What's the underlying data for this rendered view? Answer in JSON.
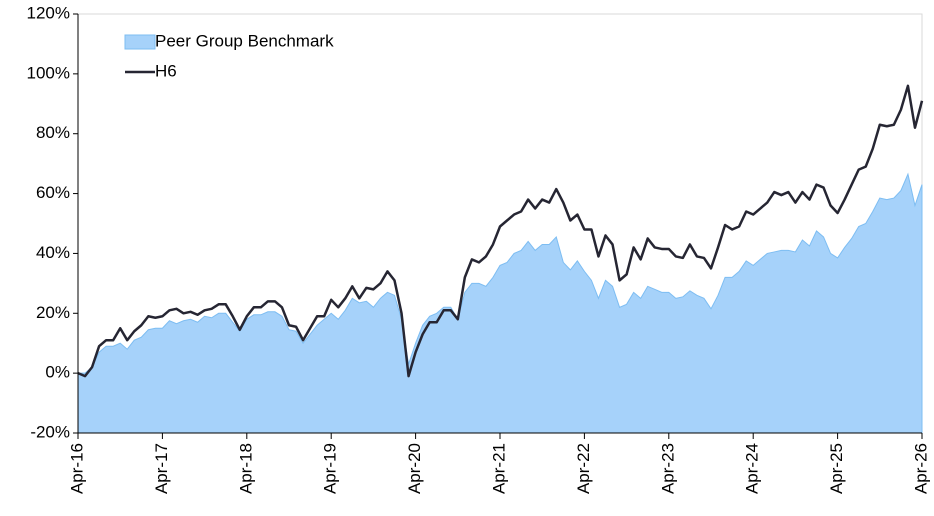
{
  "chart_data": {
    "type": "line-area",
    "categories": [
      "Apr-16",
      null,
      null,
      null,
      null,
      null,
      null,
      null,
      null,
      null,
      null,
      null,
      "Apr-17",
      null,
      null,
      null,
      null,
      null,
      null,
      null,
      null,
      null,
      null,
      null,
      "Apr-18",
      null,
      null,
      null,
      null,
      null,
      null,
      null,
      null,
      null,
      null,
      null,
      "Apr-19",
      null,
      null,
      null,
      null,
      null,
      null,
      null,
      null,
      null,
      null,
      null,
      "Apr-20",
      null,
      null,
      null,
      null,
      null,
      null,
      null,
      null,
      null,
      null,
      null,
      "Apr-21",
      null,
      null,
      null,
      null,
      null,
      null,
      null,
      null,
      null,
      null,
      null,
      "Apr-22",
      null,
      null,
      null,
      null,
      null,
      null,
      null,
      null,
      null,
      null,
      null,
      "Apr-23",
      null,
      null,
      null,
      null,
      null,
      null,
      null,
      null,
      null,
      null,
      null,
      "Apr-24",
      null,
      null,
      null,
      null,
      null,
      null,
      null,
      null,
      null,
      null,
      null,
      "Apr-25",
      null,
      null,
      null,
      null,
      null,
      null,
      null,
      null,
      null,
      null,
      null,
      "Apr-26"
    ],
    "series": [
      {
        "name": "Peer Group Benchmark",
        "style": "area",
        "color": "#a6d2fa",
        "values": [
          0,
          0,
          2,
          7,
          9,
          9,
          10,
          8,
          11,
          12,
          14.5,
          15,
          15,
          17.5,
          16.5,
          17.5,
          18,
          17,
          19,
          18.5,
          20,
          20,
          17,
          14,
          18,
          19.5,
          19.5,
          20.5,
          20.5,
          19,
          14.5,
          14,
          10,
          13,
          16,
          18,
          20,
          18,
          21,
          25,
          23.5,
          24,
          22,
          25,
          27,
          26,
          18,
          3,
          10,
          16,
          19,
          20,
          22,
          22,
          18,
          27,
          30,
          30,
          29,
          32,
          36,
          37,
          40,
          41,
          44,
          41,
          43,
          43,
          45.5,
          37,
          34.5,
          37.5,
          34,
          31,
          25,
          31,
          29,
          22,
          23,
          27,
          25,
          29,
          28,
          27,
          27,
          25,
          25.5,
          27.5,
          26,
          25,
          21.5,
          26,
          32,
          32,
          34,
          37.5,
          36,
          38,
          40,
          40.5,
          41,
          41,
          40.5,
          44.5,
          42.5,
          47.5,
          45.5,
          40,
          38.5,
          42,
          45,
          49,
          50,
          54,
          58.5,
          58,
          58.5,
          61,
          66.5,
          56,
          63
        ]
      },
      {
        "name": "H6",
        "style": "line",
        "color": "#262633",
        "values": [
          0,
          -1,
          2,
          9,
          11,
          11,
          15,
          11,
          14,
          16,
          19,
          18.5,
          19,
          21,
          21.5,
          20,
          20.5,
          19.5,
          21,
          21.5,
          23,
          23,
          19,
          14.5,
          19,
          22,
          22,
          24,
          24,
          22,
          16,
          15.5,
          11,
          15,
          19,
          19,
          24.5,
          22,
          25,
          29,
          25,
          28.5,
          28,
          30,
          34,
          31,
          20,
          -1,
          7,
          13,
          17,
          17,
          21,
          21,
          18,
          32,
          38,
          37,
          39,
          43,
          49,
          51,
          53,
          54,
          58,
          55,
          58,
          57,
          61.5,
          57,
          51,
          53,
          48,
          48,
          39,
          46,
          43,
          31,
          33,
          42,
          38,
          45,
          42,
          41.5,
          41.5,
          39,
          38.5,
          43,
          39,
          38.5,
          35,
          42,
          49.5,
          48,
          49,
          54,
          53,
          55,
          57,
          60.5,
          59.5,
          60.5,
          57,
          60.5,
          58,
          63,
          62,
          56,
          53.5,
          58,
          63,
          68,
          69,
          75,
          83,
          82.5,
          83,
          88,
          96,
          82,
          91
        ]
      }
    ],
    "ylim": [
      -20,
      120
    ],
    "yticks": [
      {
        "value": -20,
        "label": "-20%"
      },
      {
        "value": 0,
        "label": "0%"
      },
      {
        "value": 20,
        "label": "20%"
      },
      {
        "value": 40,
        "label": "40%"
      },
      {
        "value": 60,
        "label": "60%"
      },
      {
        "value": 80,
        "label": "80%"
      },
      {
        "value": 100,
        "label": "100%"
      },
      {
        "value": 120,
        "label": "120%"
      }
    ],
    "legend": "top-left"
  }
}
